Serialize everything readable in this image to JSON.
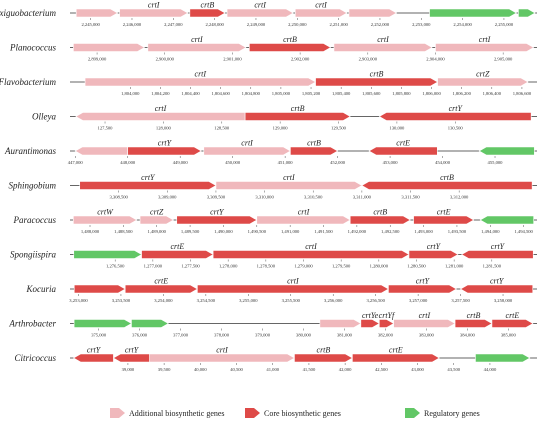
{
  "colors": {
    "additional": "#f0b8bc",
    "core": "#de4a48",
    "regulatory": "#62c766",
    "line": "#333333"
  },
  "legend": [
    {
      "label": "Additional biosynthetic genes",
      "type": "additional"
    },
    {
      "label": "Core biosynthetic genes",
      "type": "core"
    },
    {
      "label": "Regulatory genes",
      "type": "regulatory"
    }
  ],
  "tracks": [
    {
      "organism": "Exiguobacterium",
      "range": [
        2244500,
        2255800
      ],
      "ticks": [
        "2,245,000",
        "2,246,000",
        "2,247,000",
        "2,248,000",
        "2,249,000",
        "2,250,000",
        "2,251,000",
        "2,252,000",
        "2,253,000",
        "2,254,000",
        "2,255,000"
      ],
      "tick_values": [
        2245000,
        2246000,
        2247000,
        2248000,
        2249000,
        2250000,
        2251000,
        2252000,
        2253000,
        2254000,
        2255000
      ],
      "genes": [
        {
          "start": 2244650,
          "end": 2245650,
          "type": "additional",
          "dir": 1,
          "label": ""
        },
        {
          "start": 2245700,
          "end": 2247350,
          "type": "additional",
          "dir": 1,
          "label": "crtI"
        },
        {
          "start": 2247400,
          "end": 2248250,
          "type": "core",
          "dir": 1,
          "label": "crtB"
        },
        {
          "start": 2248300,
          "end": 2249900,
          "type": "additional",
          "dir": 1,
          "label": "crtI"
        },
        {
          "start": 2249950,
          "end": 2251200,
          "type": "additional",
          "dir": 1,
          "label": "crtI"
        },
        {
          "start": 2251250,
          "end": 2252400,
          "type": "additional",
          "dir": 1,
          "label": ""
        },
        {
          "start": 2253200,
          "end": 2255300,
          "type": "regulatory",
          "dir": 1,
          "label": ""
        },
        {
          "start": 2255350,
          "end": 2255750,
          "type": "regulatory",
          "dir": 1,
          "label": ""
        }
      ]
    },
    {
      "organism": "Planococcus",
      "range": [
        2898600,
        2905500
      ],
      "ticks": [
        "2,899,000",
        "2,900,000",
        "2,901,000",
        "2,902,000",
        "2,903,000",
        "2,904,000",
        "2,905,000"
      ],
      "tick_values": [
        2899000,
        2900000,
        2901000,
        2902000,
        2903000,
        2904000,
        2905000
      ],
      "genes": [
        {
          "start": 2898650,
          "end": 2899700,
          "type": "additional",
          "dir": 1,
          "label": ""
        },
        {
          "start": 2899750,
          "end": 2901200,
          "type": "additional",
          "dir": 1,
          "label": "crtI"
        },
        {
          "start": 2901250,
          "end": 2902450,
          "type": "core",
          "dir": 1,
          "label": "crtB"
        },
        {
          "start": 2902500,
          "end": 2903950,
          "type": "additional",
          "dir": 1,
          "label": "crtI"
        },
        {
          "start": 2904000,
          "end": 2905450,
          "type": "additional",
          "dir": 1,
          "label": "crtI"
        }
      ]
    },
    {
      "organism": "Flavobacterium",
      "range": [
        1803600,
        1806700
      ],
      "ticks": [
        "1,804,000",
        "1,804,200",
        "1,804,400",
        "1,804,600",
        "1,804,800",
        "1,805,000",
        "1,805,200",
        "1,805,400",
        "1,805,600",
        "1,805,800",
        "1,806,000",
        "1,806,200",
        "1,806,400",
        "1,806,600"
      ],
      "tick_values": [
        1804000,
        1804200,
        1804400,
        1804600,
        1804800,
        1805000,
        1805200,
        1805400,
        1805600,
        1805800,
        1806000,
        1806200,
        1806400,
        1806600
      ],
      "genes": [
        {
          "start": 1803700,
          "end": 1805230,
          "type": "additional",
          "dir": 1,
          "label": "crtI"
        },
        {
          "start": 1805230,
          "end": 1806040,
          "type": "core",
          "dir": 1,
          "label": "crtB"
        },
        {
          "start": 1806040,
          "end": 1806640,
          "type": "additional",
          "dir": 1,
          "label": "crtZ"
        }
      ]
    },
    {
      "organism": "Olleya",
      "range": [
        127200,
        131200
      ],
      "ticks": [
        "127,500",
        "128,000",
        "128,500",
        "129,000",
        "129,500",
        "130,000",
        "130,500"
      ],
      "tick_values": [
        127500,
        128000,
        128500,
        129000,
        129500,
        130000,
        130500
      ],
      "genes": [
        {
          "start": 127250,
          "end": 128700,
          "type": "additional",
          "dir": -1,
          "label": "crtI"
        },
        {
          "start": 128700,
          "end": 129600,
          "type": "core",
          "dir": 1,
          "label": "crtB"
        },
        {
          "start": 129850,
          "end": 131150,
          "type": "core",
          "dir": -1,
          "label": "crtY"
        }
      ]
    },
    {
      "organism": "Aurantimonas",
      "range": [
        446900,
        455800
      ],
      "ticks": [
        "447,000",
        "448,000",
        "449,000",
        "450,000",
        "451,000",
        "452,000",
        "453,000",
        "454,000",
        "455,000"
      ],
      "tick_values": [
        447000,
        448000,
        449000,
        450000,
        451000,
        452000,
        453000,
        454000,
        455000
      ],
      "genes": [
        {
          "start": 447000,
          "end": 448000,
          "type": "additional",
          "dir": -1,
          "label": ""
        },
        {
          "start": 448000,
          "end": 449400,
          "type": "core",
          "dir": 1,
          "label": "crtY"
        },
        {
          "start": 449450,
          "end": 451100,
          "type": "additional",
          "dir": 1,
          "label": "crtI"
        },
        {
          "start": 451100,
          "end": 452000,
          "type": "core",
          "dir": 1,
          "label": "crtB"
        },
        {
          "start": 452600,
          "end": 453900,
          "type": "core",
          "dir": -1,
          "label": "crtE"
        },
        {
          "start": 454700,
          "end": 455750,
          "type": "regulatory",
          "dir": -1,
          "label": ""
        }
      ]
    },
    {
      "organism": "Sphingobium",
      "range": [
        3308000,
        3312800
      ],
      "ticks": [
        "3,308,500",
        "3,309,000",
        "3,309,500",
        "3,310,000",
        "3,310,500",
        "3,311,000",
        "3,311,500",
        "3,312,000"
      ],
      "tick_values": [
        3308500,
        3309000,
        3309500,
        3310000,
        3310500,
        3311000,
        3311500,
        3312000
      ],
      "genes": [
        {
          "start": 3308100,
          "end": 3309500,
          "type": "core",
          "dir": 1,
          "label": "crtY"
        },
        {
          "start": 3309500,
          "end": 3311000,
          "type": "additional",
          "dir": 1,
          "label": "crtI"
        },
        {
          "start": 3311000,
          "end": 3312750,
          "type": "core",
          "dir": -1,
          "label": "crtB"
        }
      ]
    },
    {
      "organism": "Paracoccus",
      "range": [
        1487700,
        1494700
      ],
      "ticks": [
        "1,488,000",
        "1,488,500",
        "1,489,000",
        "1,489,500",
        "1,490,000",
        "1,490,500",
        "1,491,000",
        "1,491,500",
        "1,492,000",
        "1,492,500",
        "1,493,000",
        "1,493,500",
        "1,494,000",
        "1,494,500"
      ],
      "tick_values": [
        1488000,
        1488500,
        1489000,
        1489500,
        1490000,
        1490500,
        1491000,
        1491500,
        1492000,
        1492500,
        1493000,
        1493500,
        1494000,
        1494500
      ],
      "genes": [
        {
          "start": 1487750,
          "end": 1488700,
          "type": "additional",
          "dir": 1,
          "label": "crtW"
        },
        {
          "start": 1488750,
          "end": 1489250,
          "type": "additional",
          "dir": 1,
          "label": "crtZ"
        },
        {
          "start": 1489300,
          "end": 1490500,
          "type": "core",
          "dir": 1,
          "label": "crtY"
        },
        {
          "start": 1490500,
          "end": 1491900,
          "type": "additional",
          "dir": 1,
          "label": "crtI"
        },
        {
          "start": 1491900,
          "end": 1492800,
          "type": "core",
          "dir": 1,
          "label": "crtB"
        },
        {
          "start": 1492850,
          "end": 1493750,
          "type": "core",
          "dir": 1,
          "label": "crtE"
        },
        {
          "start": 1493850,
          "end": 1494650,
          "type": "regulatory",
          "dir": -1,
          "label": ""
        }
      ]
    },
    {
      "organism": "Spongiispira",
      "range": [
        1275900,
        1282100
      ],
      "ticks": [
        "1,276,500",
        "1,277,000",
        "1,277,500",
        "1,278,000",
        "1,278,500",
        "1,279,000",
        "1,279,500",
        "1,280,000",
        "1,280,500",
        "1,281,000",
        "1,281,500"
      ],
      "tick_values": [
        1276500,
        1277000,
        1277500,
        1278000,
        1278500,
        1279000,
        1279500,
        1280000,
        1280500,
        1281000,
        1281500
      ],
      "genes": [
        {
          "start": 1275950,
          "end": 1276850,
          "type": "regulatory",
          "dir": 1,
          "label": ""
        },
        {
          "start": 1276850,
          "end": 1277800,
          "type": "core",
          "dir": 1,
          "label": "crtE"
        },
        {
          "start": 1277800,
          "end": 1280400,
          "type": "core",
          "dir": 1,
          "label": "crtI"
        },
        {
          "start": 1280400,
          "end": 1281050,
          "type": "core",
          "dir": 1,
          "label": "crtY"
        },
        {
          "start": 1281100,
          "end": 1282050,
          "type": "core",
          "dir": -1,
          "label": "crtY"
        }
      ]
    },
    {
      "organism": "Kocuria",
      "range": [
        3252900,
        3258400
      ],
      "ticks": [
        "3,253,000",
        "3,253,500",
        "3,254,000",
        "3,254,500",
        "3,255,000",
        "3,255,500",
        "3,256,000",
        "3,256,500",
        "3,257,000",
        "3,257,500",
        "3,258,000"
      ],
      "tick_values": [
        3253000,
        3253500,
        3254000,
        3254500,
        3255000,
        3255500,
        3256000,
        3256500,
        3257000,
        3257500,
        3258000
      ],
      "genes": [
        {
          "start": 3252950,
          "end": 3253550,
          "type": "core",
          "dir": 1,
          "label": ""
        },
        {
          "start": 3253550,
          "end": 3254400,
          "type": "core",
          "dir": 1,
          "label": "crtE"
        },
        {
          "start": 3254400,
          "end": 3256650,
          "type": "core",
          "dir": 1,
          "label": "crtI"
        },
        {
          "start": 3256650,
          "end": 3257450,
          "type": "core",
          "dir": 1,
          "label": "crtY"
        },
        {
          "start": 3257500,
          "end": 3258350,
          "type": "core",
          "dir": -1,
          "label": "crtY"
        }
      ]
    },
    {
      "organism": "Arthrobacter",
      "range": [
        374300,
        385700
      ],
      "ticks": [
        "375,000",
        "376,000",
        "377,000",
        "378,000",
        "379,000",
        "380,000",
        "381,000",
        "382,000",
        "383,000",
        "384,000",
        "385,000"
      ],
      "tick_values": [
        375000,
        376000,
        377000,
        378000,
        379000,
        380000,
        381000,
        382000,
        383000,
        384000,
        385000
      ],
      "genes": [
        {
          "start": 374400,
          "end": 375800,
          "type": "regulatory",
          "dir": 1,
          "label": ""
        },
        {
          "start": 375800,
          "end": 376700,
          "type": "regulatory",
          "dir": 1,
          "label": ""
        },
        {
          "start": 380400,
          "end": 381400,
          "type": "additional",
          "dir": 1,
          "label": ""
        },
        {
          "start": 381400,
          "end": 381850,
          "type": "core",
          "dir": 1,
          "label": "crtYe"
        },
        {
          "start": 381850,
          "end": 382200,
          "type": "core",
          "dir": 1,
          "label": "crtYf"
        },
        {
          "start": 382200,
          "end": 383700,
          "type": "additional",
          "dir": 1,
          "label": "crtI"
        },
        {
          "start": 383700,
          "end": 384600,
          "type": "core",
          "dir": 1,
          "label": "crtB"
        },
        {
          "start": 384600,
          "end": 385600,
          "type": "core",
          "dir": 1,
          "label": "crtE"
        }
      ]
    },
    {
      "organism": "Citricoccus",
      "range": [
        38200,
        44650
      ],
      "ticks": [
        "39,000",
        "39,500",
        "40,000",
        "40,500",
        "41,000",
        "41,500",
        "42,000",
        "42,500",
        "43,000",
        "43,500",
        "44,000"
      ],
      "tick_values": [
        39000,
        39500,
        40000,
        40500,
        41000,
        41500,
        42000,
        42500,
        43000,
        43500,
        44000
      ],
      "genes": [
        {
          "start": 38250,
          "end": 38800,
          "type": "core",
          "dir": -1,
          "label": "crtY"
        },
        {
          "start": 38800,
          "end": 39300,
          "type": "core",
          "dir": -1,
          "label": "crtY"
        },
        {
          "start": 39300,
          "end": 41300,
          "type": "additional",
          "dir": 1,
          "label": "crtI"
        },
        {
          "start": 41300,
          "end": 42100,
          "type": "core",
          "dir": 1,
          "label": "crtB"
        },
        {
          "start": 42100,
          "end": 43300,
          "type": "core",
          "dir": 1,
          "label": "crtE"
        },
        {
          "start": 43800,
          "end": 44550,
          "type": "regulatory",
          "dir": 1,
          "label": ""
        }
      ]
    }
  ]
}
